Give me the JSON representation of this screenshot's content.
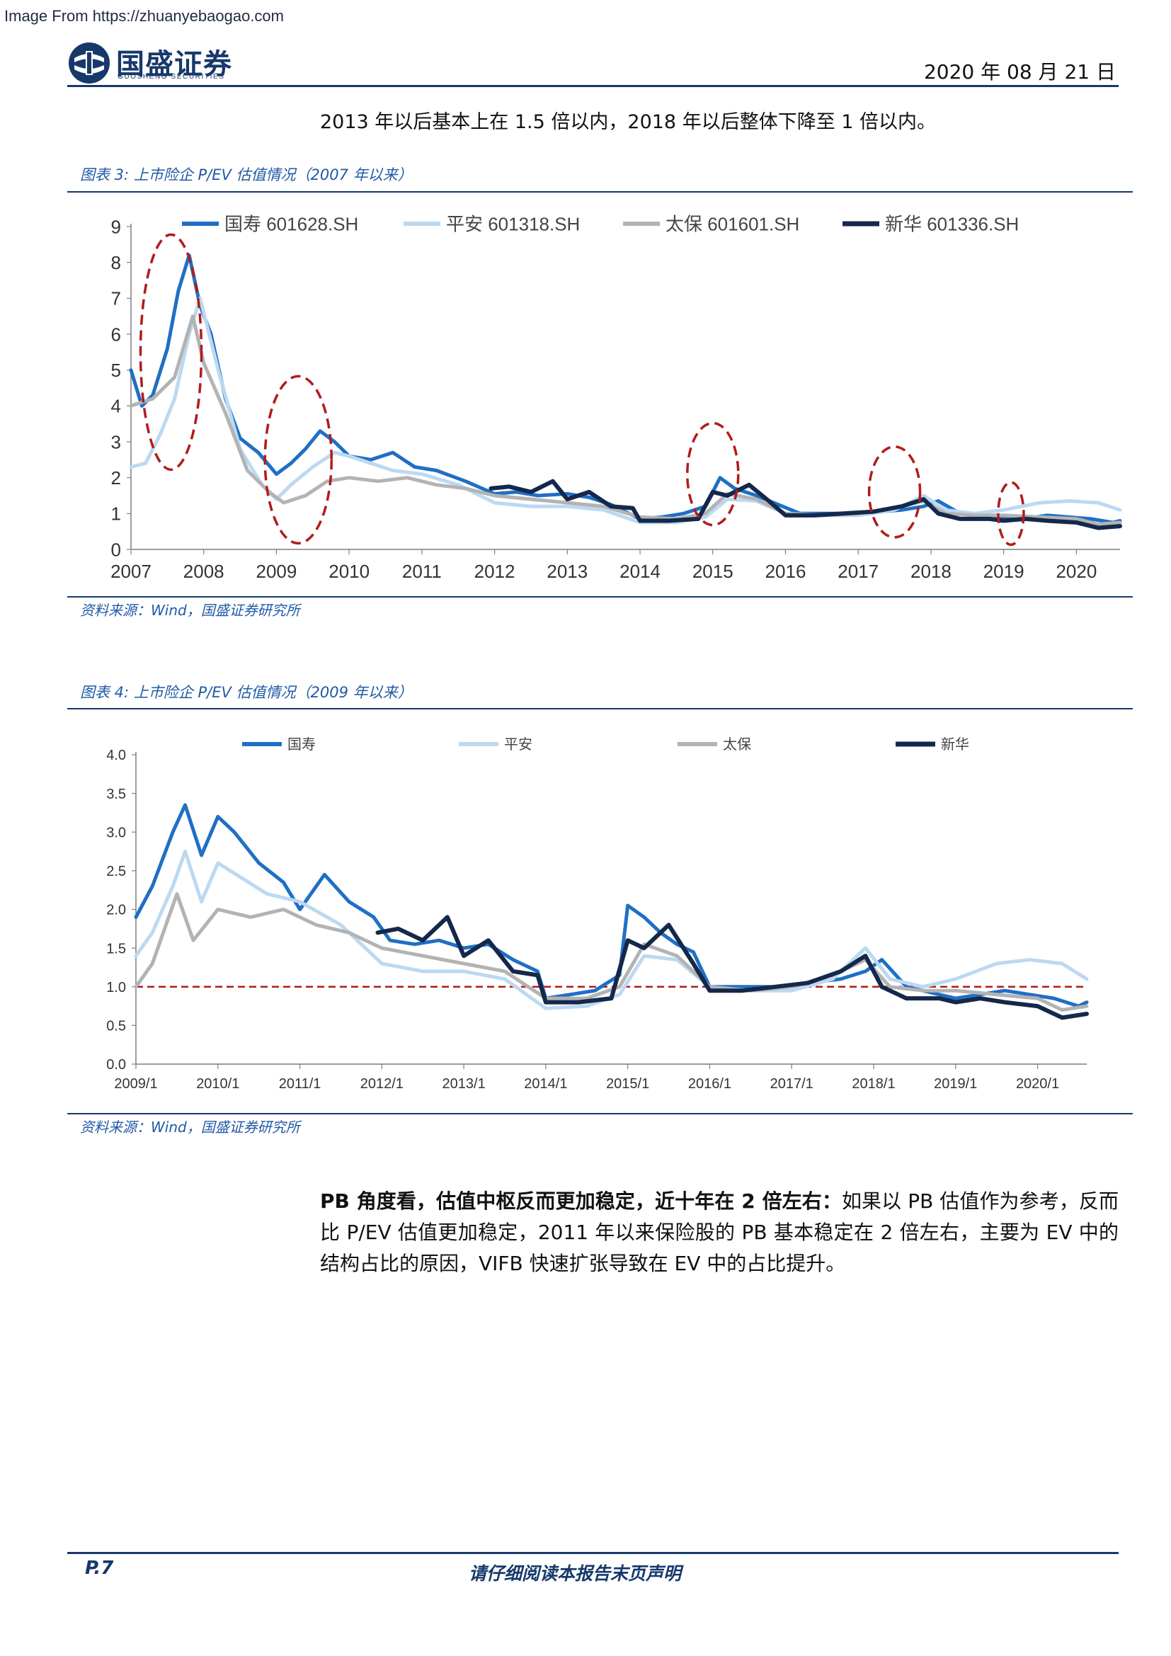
{
  "watermark": "Image From https://zhuanyebaogao.com",
  "header": {
    "logo_cn": "国盛证券",
    "logo_en": "GUOSHENG SECURITIES",
    "date": "2020 年 08 月 21 日"
  },
  "intro_line": "2013 年以后基本上在 1.5 倍以内，2018 年以后整体下降至 1 倍以内。",
  "fig3": {
    "title": "图表 3:  上市险企 P/EV 估值情况（2007 年以来）",
    "source": "资料来源：Wind，国盛证券研究所"
  },
  "fig4": {
    "title": "图表 4:  上市险企 P/EV 估值情况（2009 年以来）",
    "source": "资料来源：Wind，国盛证券研究所"
  },
  "paragraph": {
    "bold": "PB 角度看，估值中枢反而更加稳定，近十年在 2 倍左右：",
    "text": "如果以 PB 估值作为参考，反而比 P/EV 估值更加稳定，2011 年以来保险股的 PB 基本稳定在 2 倍左右，主要为 EV 中的结构占比的原因，VIFB 快速扩张导致在 EV 中的占比提升。"
  },
  "footer": {
    "page": "P.7",
    "disclaimer": "请仔细阅读本报告末页声明"
  },
  "colors": {
    "guoshou": "#1f6fc5",
    "pingan": "#bcd9f2",
    "taibao": "#b3b3b3",
    "xinhua": "#14284b",
    "ellipse": "#b01c1c",
    "brand": "#17386b"
  },
  "chart_data": [
    {
      "type": "line",
      "title": "",
      "xlabel": "",
      "ylabel": "",
      "xlim": [
        2007,
        2020.6
      ],
      "ylim": [
        0,
        9
      ],
      "yticks": [
        0,
        1,
        2,
        3,
        4,
        5,
        6,
        7,
        8,
        9
      ],
      "xtick_labels": [
        "2007",
        "2008",
        "2009",
        "2010",
        "2011",
        "2012",
        "2013",
        "2014",
        "2015",
        "2016",
        "2017",
        "2018",
        "2019",
        "2020"
      ],
      "grid": false,
      "legend": "top",
      "highlight_ellipses": [
        [
          2007.55,
          5.5
        ],
        [
          2009.3,
          2.5
        ],
        [
          2015.0,
          2.1
        ],
        [
          2017.5,
          1.6
        ],
        [
          2019.1,
          1.0
        ]
      ],
      "series": [
        {
          "name": "国寿 601628.SH",
          "x": [
            2007.0,
            2007.15,
            2007.3,
            2007.5,
            2007.65,
            2007.8,
            2007.95,
            2008.1,
            2008.3,
            2008.5,
            2008.75,
            2009.0,
            2009.2,
            2009.4,
            2009.6,
            2009.8,
            2010.0,
            2010.3,
            2010.6,
            2010.9,
            2011.2,
            2011.6,
            2012.0,
            2012.3,
            2012.6,
            2013.0,
            2013.3,
            2013.6,
            2014.0,
            2014.3,
            2014.6,
            2014.9,
            2015.1,
            2015.3,
            2015.6,
            2015.9,
            2016.2,
            2016.6,
            2017.0,
            2017.3,
            2017.6,
            2017.9,
            2018.1,
            2018.4,
            2018.7,
            2019.0,
            2019.3,
            2019.6,
            2019.9,
            2020.2,
            2020.5,
            2020.6
          ],
          "values": [
            5.0,
            4.0,
            4.3,
            5.6,
            7.2,
            8.2,
            6.8,
            6.0,
            4.2,
            3.1,
            2.7,
            2.1,
            2.4,
            2.8,
            3.3,
            3.0,
            2.6,
            2.5,
            2.7,
            2.3,
            2.2,
            1.9,
            1.55,
            1.6,
            1.5,
            1.55,
            1.45,
            1.25,
            0.85,
            0.9,
            1.0,
            1.2,
            2.0,
            1.7,
            1.5,
            1.25,
            1.0,
            1.0,
            1.0,
            1.05,
            1.1,
            1.2,
            1.35,
            1.0,
            0.9,
            0.9,
            0.85,
            0.95,
            0.9,
            0.85,
            0.75,
            0.8
          ]
        },
        {
          "name": "平安 601318.SH",
          "x": [
            2007.0,
            2007.2,
            2007.4,
            2007.6,
            2007.8,
            2007.95,
            2008.2,
            2008.5,
            2008.8,
            2009.0,
            2009.2,
            2009.5,
            2009.8,
            2010.0,
            2010.3,
            2010.6,
            2011.0,
            2011.5,
            2012.0,
            2012.5,
            2013.0,
            2013.5,
            2014.0,
            2014.5,
            2014.9,
            2015.2,
            2015.6,
            2016.0,
            2016.5,
            2017.0,
            2017.5,
            2017.9,
            2018.2,
            2018.6,
            2019.0,
            2019.5,
            2019.9,
            2020.3,
            2020.6
          ],
          "values": [
            2.3,
            2.4,
            3.2,
            4.2,
            6.0,
            7.0,
            5.0,
            2.8,
            1.8,
            1.4,
            1.8,
            2.3,
            2.7,
            2.6,
            2.4,
            2.2,
            2.1,
            1.8,
            1.3,
            1.2,
            1.2,
            1.1,
            0.75,
            0.75,
            0.9,
            1.4,
            1.35,
            1.0,
            0.95,
            0.95,
            1.1,
            1.5,
            1.1,
            1.0,
            1.1,
            1.3,
            1.35,
            1.3,
            1.1
          ]
        },
        {
          "name": "太保 601601.SH",
          "x": [
            2007.0,
            2007.3,
            2007.6,
            2007.85,
            2008.0,
            2008.3,
            2008.6,
            2008.9,
            2009.1,
            2009.4,
            2009.7,
            2010.0,
            2010.4,
            2010.8,
            2011.2,
            2011.6,
            2012.0,
            2012.5,
            2013.0,
            2013.5,
            2014.0,
            2014.5,
            2014.9,
            2015.2,
            2015.6,
            2016.0,
            2016.5,
            2017.0,
            2017.5,
            2017.9,
            2018.2,
            2018.6,
            2019.0,
            2019.5,
            2020.0,
            2020.3,
            2020.6
          ],
          "values": [
            4.0,
            4.2,
            4.8,
            6.5,
            5.2,
            3.8,
            2.2,
            1.6,
            1.3,
            1.5,
            1.9,
            2.0,
            1.9,
            2.0,
            1.8,
            1.7,
            1.5,
            1.4,
            1.3,
            1.2,
            0.9,
            0.85,
            1.0,
            1.55,
            1.4,
            1.0,
            0.95,
            1.0,
            1.15,
            1.35,
            1.0,
            0.95,
            0.95,
            0.9,
            0.85,
            0.7,
            0.75
          ]
        },
        {
          "name": "新华 601336.SH",
          "x": [
            2011.95,
            2012.2,
            2012.5,
            2012.8,
            2013.0,
            2013.3,
            2013.6,
            2013.9,
            2014.0,
            2014.4,
            2014.8,
            2015.0,
            2015.2,
            2015.5,
            2015.8,
            2016.0,
            2016.4,
            2016.8,
            2017.2,
            2017.6,
            2017.9,
            2018.1,
            2018.4,
            2018.8,
            2019.0,
            2019.3,
            2019.6,
            2020.0,
            2020.3,
            2020.6
          ],
          "values": [
            1.7,
            1.75,
            1.6,
            1.9,
            1.4,
            1.6,
            1.2,
            1.15,
            0.8,
            0.8,
            0.85,
            1.6,
            1.5,
            1.8,
            1.3,
            0.95,
            0.95,
            1.0,
            1.05,
            1.2,
            1.4,
            1.0,
            0.85,
            0.85,
            0.8,
            0.85,
            0.8,
            0.75,
            0.6,
            0.65
          ]
        }
      ]
    },
    {
      "type": "line",
      "title": "",
      "xlabel": "",
      "ylabel": "",
      "xlim": [
        2009.0,
        2020.6
      ],
      "ylim": [
        0,
        4.0
      ],
      "yticks": [
        0.0,
        0.5,
        1.0,
        1.5,
        2.0,
        2.5,
        3.0,
        3.5,
        4.0
      ],
      "xtick_labels": [
        "2009/1",
        "2010/1",
        "2011/1",
        "2012/1",
        "2013/1",
        "2014/1",
        "2015/1",
        "2016/1",
        "2017/1",
        "2018/1",
        "2019/1",
        "2020/1"
      ],
      "grid": false,
      "legend": "top",
      "reference_line": 1.0,
      "series": [
        {
          "name": "国寿",
          "x": [
            2009.0,
            2009.2,
            2009.45,
            2009.6,
            2009.8,
            2010.0,
            2010.2,
            2010.5,
            2010.8,
            2011.0,
            2011.3,
            2011.6,
            2011.9,
            2012.1,
            2012.4,
            2012.7,
            2013.0,
            2013.3,
            2013.6,
            2013.9,
            2014.0,
            2014.3,
            2014.6,
            2014.9,
            2015.0,
            2015.2,
            2015.4,
            2015.6,
            2015.8,
            2016.0,
            2016.4,
            2016.8,
            2017.2,
            2017.6,
            2017.9,
            2018.1,
            2018.4,
            2018.8,
            2019.0,
            2019.3,
            2019.6,
            2019.9,
            2020.2,
            2020.5,
            2020.6
          ],
          "values": [
            1.9,
            2.3,
            3.0,
            3.35,
            2.7,
            3.2,
            3.0,
            2.6,
            2.35,
            2.0,
            2.45,
            2.1,
            1.9,
            1.6,
            1.55,
            1.6,
            1.5,
            1.55,
            1.35,
            1.2,
            0.85,
            0.9,
            0.95,
            1.15,
            2.05,
            1.9,
            1.7,
            1.55,
            1.45,
            1.0,
            1.0,
            1.0,
            1.05,
            1.1,
            1.2,
            1.35,
            1.0,
            0.9,
            0.85,
            0.9,
            0.95,
            0.9,
            0.85,
            0.75,
            0.8
          ]
        },
        {
          "name": "平安",
          "x": [
            2009.0,
            2009.2,
            2009.45,
            2009.6,
            2009.8,
            2010.0,
            2010.3,
            2010.6,
            2011.0,
            2011.5,
            2012.0,
            2012.5,
            2013.0,
            2013.5,
            2014.0,
            2014.5,
            2014.9,
            2015.2,
            2015.6,
            2016.0,
            2016.5,
            2017.0,
            2017.5,
            2017.9,
            2018.2,
            2018.6,
            2019.0,
            2019.5,
            2019.9,
            2020.3,
            2020.6
          ],
          "values": [
            1.4,
            1.7,
            2.3,
            2.75,
            2.1,
            2.6,
            2.4,
            2.2,
            2.1,
            1.8,
            1.3,
            1.2,
            1.2,
            1.1,
            0.72,
            0.75,
            0.9,
            1.4,
            1.35,
            1.0,
            0.95,
            0.95,
            1.1,
            1.5,
            1.1,
            1.0,
            1.1,
            1.3,
            1.35,
            1.3,
            1.1
          ]
        },
        {
          "name": "太保",
          "x": [
            2009.0,
            2009.2,
            2009.5,
            2009.7,
            2010.0,
            2010.4,
            2010.8,
            2011.2,
            2011.6,
            2012.0,
            2012.5,
            2013.0,
            2013.5,
            2014.0,
            2014.5,
            2014.9,
            2015.2,
            2015.6,
            2016.0,
            2016.5,
            2017.0,
            2017.5,
            2017.9,
            2018.2,
            2018.6,
            2019.0,
            2019.5,
            2020.0,
            2020.3,
            2020.6
          ],
          "values": [
            1.0,
            1.3,
            2.2,
            1.6,
            2.0,
            1.9,
            2.0,
            1.8,
            1.7,
            1.5,
            1.4,
            1.3,
            1.2,
            0.85,
            0.85,
            1.0,
            1.55,
            1.4,
            1.0,
            0.95,
            1.0,
            1.15,
            1.35,
            1.0,
            0.95,
            0.95,
            0.9,
            0.85,
            0.7,
            0.75
          ]
        },
        {
          "name": "新华",
          "x": [
            2011.95,
            2012.2,
            2012.5,
            2012.8,
            2013.0,
            2013.3,
            2013.6,
            2013.9,
            2014.0,
            2014.4,
            2014.8,
            2015.0,
            2015.2,
            2015.5,
            2015.8,
            2016.0,
            2016.4,
            2016.8,
            2017.2,
            2017.6,
            2017.9,
            2018.1,
            2018.4,
            2018.8,
            2019.0,
            2019.3,
            2019.6,
            2020.0,
            2020.3,
            2020.6
          ],
          "values": [
            1.7,
            1.75,
            1.6,
            1.9,
            1.4,
            1.6,
            1.2,
            1.15,
            0.8,
            0.8,
            0.85,
            1.6,
            1.5,
            1.8,
            1.3,
            0.95,
            0.95,
            1.0,
            1.05,
            1.2,
            1.4,
            1.0,
            0.85,
            0.85,
            0.8,
            0.85,
            0.8,
            0.75,
            0.6,
            0.65
          ]
        }
      ]
    }
  ]
}
